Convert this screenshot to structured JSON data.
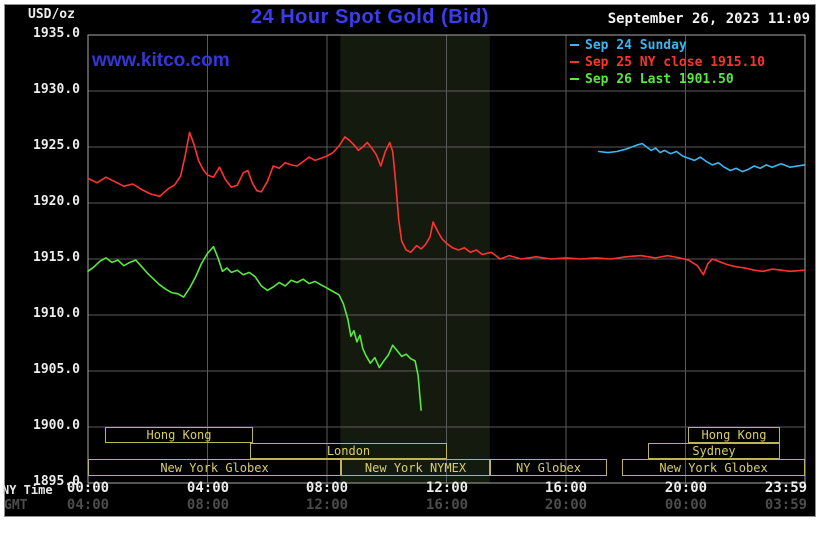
{
  "header": {
    "units": "USD/oz",
    "title": "24 Hour Spot Gold (Bid)",
    "datetime": "September 26, 2023 11:09",
    "watermark": "www.kitco.com"
  },
  "axis_labels": {
    "ny": "NY Time",
    "gmt": "GMT"
  },
  "sessions": [
    {
      "label": "Hong Kong"
    },
    {
      "label": "Hong Kong"
    },
    {
      "label": "London"
    },
    {
      "label": "Sydney"
    },
    {
      "label": "New York Globex"
    },
    {
      "label": "New York NYMEX"
    },
    {
      "label": "NY Globex"
    },
    {
      "label": "New York Globex"
    }
  ],
  "chart_data": {
    "type": "line",
    "title": "24 Hour Spot Gold (Bid)",
    "xlabel": "NY Time / GMT",
    "ylabel": "USD/oz",
    "xlim": [
      0,
      24
    ],
    "ylim": [
      1895,
      1935
    ],
    "grid": true,
    "background": "#000000",
    "gridline_color": "#5a5a5a",
    "border_color": "#a8a8a8",
    "shaded_band": {
      "x0": 8.45,
      "x1": 13.45,
      "color": "#151a0e",
      "note": "New York NYMEX session"
    },
    "yticks": [
      {
        "v": 1935,
        "label": "1935.0"
      },
      {
        "v": 1930,
        "label": "1930.0"
      },
      {
        "v": 1925,
        "label": "1925.0"
      },
      {
        "v": 1920,
        "label": "1920.0"
      },
      {
        "v": 1915,
        "label": "1915.0"
      },
      {
        "v": 1910,
        "label": "1910.0"
      },
      {
        "v": 1905,
        "label": "1905.0"
      },
      {
        "v": 1900,
        "label": "1900.0"
      },
      {
        "v": 1895,
        "label": "1895.0"
      }
    ],
    "xticks": [
      {
        "v": 0,
        "ny": "00:00",
        "gmt": "04:00"
      },
      {
        "v": 4,
        "ny": "04:00",
        "gmt": "08:00"
      },
      {
        "v": 8,
        "ny": "08:00",
        "gmt": "12:00"
      },
      {
        "v": 12,
        "ny": "12:00",
        "gmt": "16:00"
      },
      {
        "v": 16,
        "ny": "16:00",
        "gmt": "20:00"
      },
      {
        "v": 20,
        "ny": "20:00",
        "gmt": "00:00"
      },
      {
        "v": 23.983,
        "ny": "23:59",
        "gmt": "03:59"
      }
    ],
    "legend": [
      {
        "label": "Sep 24 Sunday",
        "color": "#3db6f0"
      },
      {
        "label": "Sep 25 NY close 1915.10",
        "color": "#ff3232"
      },
      {
        "label": "Sep 26 Last 1901.50",
        "color": "#57e93c"
      }
    ],
    "series": [
      {
        "name": "Sep 25 NY close",
        "color": "#ff3232",
        "points": [
          [
            0,
            1922.2
          ],
          [
            0.3,
            1921.8
          ],
          [
            0.6,
            1922.3
          ],
          [
            0.9,
            1921.9
          ],
          [
            1.2,
            1921.5
          ],
          [
            1.5,
            1921.7
          ],
          [
            1.8,
            1921.2
          ],
          [
            2.1,
            1920.8
          ],
          [
            2.4,
            1920.6
          ],
          [
            2.7,
            1921.3
          ],
          [
            2.9,
            1921.6
          ],
          [
            3.1,
            1922.4
          ],
          [
            3.25,
            1924.2
          ],
          [
            3.4,
            1926.3
          ],
          [
            3.55,
            1925.2
          ],
          [
            3.7,
            1923.8
          ],
          [
            3.85,
            1923.0
          ],
          [
            4.0,
            1922.5
          ],
          [
            4.2,
            1922.3
          ],
          [
            4.4,
            1923.2
          ],
          [
            4.6,
            1922.1
          ],
          [
            4.8,
            1921.4
          ],
          [
            5.0,
            1921.6
          ],
          [
            5.2,
            1922.7
          ],
          [
            5.35,
            1922.9
          ],
          [
            5.5,
            1921.8
          ],
          [
            5.65,
            1921.1
          ],
          [
            5.8,
            1921.0
          ],
          [
            6.0,
            1921.9
          ],
          [
            6.2,
            1923.3
          ],
          [
            6.4,
            1923.1
          ],
          [
            6.6,
            1923.6
          ],
          [
            6.8,
            1923.4
          ],
          [
            7.0,
            1923.3
          ],
          [
            7.2,
            1923.7
          ],
          [
            7.4,
            1924.1
          ],
          [
            7.6,
            1923.8
          ],
          [
            7.8,
            1924.0
          ],
          [
            8.0,
            1924.2
          ],
          [
            8.2,
            1924.5
          ],
          [
            8.4,
            1925.1
          ],
          [
            8.6,
            1925.9
          ],
          [
            8.75,
            1925.6
          ],
          [
            8.9,
            1925.2
          ],
          [
            9.05,
            1924.7
          ],
          [
            9.2,
            1925.0
          ],
          [
            9.35,
            1925.4
          ],
          [
            9.5,
            1924.9
          ],
          [
            9.65,
            1924.3
          ],
          [
            9.8,
            1923.3
          ],
          [
            9.95,
            1924.6
          ],
          [
            10.1,
            1925.4
          ],
          [
            10.2,
            1924.6
          ],
          [
            10.3,
            1921.8
          ],
          [
            10.4,
            1918.5
          ],
          [
            10.5,
            1916.6
          ],
          [
            10.65,
            1915.8
          ],
          [
            10.8,
            1915.6
          ],
          [
            11.0,
            1916.2
          ],
          [
            11.15,
            1915.9
          ],
          [
            11.3,
            1916.3
          ],
          [
            11.45,
            1917.0
          ],
          [
            11.55,
            1918.3
          ],
          [
            11.7,
            1917.5
          ],
          [
            11.85,
            1916.8
          ],
          [
            12.0,
            1916.4
          ],
          [
            12.2,
            1916.0
          ],
          [
            12.4,
            1915.8
          ],
          [
            12.6,
            1916.0
          ],
          [
            12.8,
            1915.6
          ],
          [
            13.0,
            1915.8
          ],
          [
            13.2,
            1915.4
          ],
          [
            13.5,
            1915.6
          ],
          [
            13.8,
            1915.0
          ],
          [
            14.1,
            1915.3
          ],
          [
            14.5,
            1915.0
          ],
          [
            15.0,
            1915.2
          ],
          [
            15.5,
            1915.0
          ],
          [
            16.0,
            1915.1
          ],
          [
            16.5,
            1915.0
          ],
          [
            17.0,
            1915.1
          ],
          [
            17.5,
            1915.0
          ],
          [
            18.0,
            1915.2
          ],
          [
            18.5,
            1915.3
          ],
          [
            19.0,
            1915.1
          ],
          [
            19.4,
            1915.3
          ],
          [
            19.8,
            1915.1
          ],
          [
            20.1,
            1914.9
          ],
          [
            20.4,
            1914.4
          ],
          [
            20.6,
            1913.6
          ],
          [
            20.75,
            1914.6
          ],
          [
            20.9,
            1915.0
          ],
          [
            21.1,
            1914.8
          ],
          [
            21.4,
            1914.5
          ],
          [
            21.7,
            1914.3
          ],
          [
            22.0,
            1914.2
          ],
          [
            22.3,
            1914.0
          ],
          [
            22.6,
            1913.9
          ],
          [
            22.9,
            1914.1
          ],
          [
            23.2,
            1914.0
          ],
          [
            23.5,
            1913.9
          ],
          [
            23.98,
            1914.0
          ]
        ]
      },
      {
        "name": "Sep 26 Last",
        "color": "#57e93c",
        "points": [
          [
            0,
            1913.9
          ],
          [
            0.2,
            1914.3
          ],
          [
            0.4,
            1914.8
          ],
          [
            0.6,
            1915.1
          ],
          [
            0.8,
            1914.7
          ],
          [
            1.0,
            1914.9
          ],
          [
            1.2,
            1914.4
          ],
          [
            1.4,
            1914.7
          ],
          [
            1.6,
            1914.9
          ],
          [
            1.8,
            1914.3
          ],
          [
            2.0,
            1913.7
          ],
          [
            2.2,
            1913.2
          ],
          [
            2.4,
            1912.7
          ],
          [
            2.6,
            1912.3
          ],
          [
            2.8,
            1912.0
          ],
          [
            3.0,
            1911.9
          ],
          [
            3.2,
            1911.6
          ],
          [
            3.4,
            1912.4
          ],
          [
            3.6,
            1913.4
          ],
          [
            3.8,
            1914.6
          ],
          [
            4.0,
            1915.5
          ],
          [
            4.2,
            1916.1
          ],
          [
            4.35,
            1915.1
          ],
          [
            4.5,
            1913.9
          ],
          [
            4.65,
            1914.2
          ],
          [
            4.8,
            1913.8
          ],
          [
            5.0,
            1914.0
          ],
          [
            5.2,
            1913.6
          ],
          [
            5.4,
            1913.8
          ],
          [
            5.6,
            1913.4
          ],
          [
            5.8,
            1912.6
          ],
          [
            6.0,
            1912.2
          ],
          [
            6.2,
            1912.5
          ],
          [
            6.4,
            1912.9
          ],
          [
            6.6,
            1912.6
          ],
          [
            6.8,
            1913.1
          ],
          [
            7.0,
            1912.9
          ],
          [
            7.2,
            1913.2
          ],
          [
            7.4,
            1912.8
          ],
          [
            7.6,
            1913.0
          ],
          [
            7.8,
            1912.7
          ],
          [
            8.0,
            1912.4
          ],
          [
            8.2,
            1912.1
          ],
          [
            8.4,
            1911.8
          ],
          [
            8.55,
            1911.0
          ],
          [
            8.7,
            1909.6
          ],
          [
            8.8,
            1908.1
          ],
          [
            8.9,
            1908.6
          ],
          [
            9.0,
            1907.6
          ],
          [
            9.1,
            1908.2
          ],
          [
            9.2,
            1907.0
          ],
          [
            9.3,
            1906.4
          ],
          [
            9.45,
            1905.7
          ],
          [
            9.6,
            1906.2
          ],
          [
            9.75,
            1905.3
          ],
          [
            9.9,
            1905.9
          ],
          [
            10.05,
            1906.4
          ],
          [
            10.2,
            1907.3
          ],
          [
            10.35,
            1906.8
          ],
          [
            10.5,
            1906.3
          ],
          [
            10.65,
            1906.5
          ],
          [
            10.8,
            1906.1
          ],
          [
            10.95,
            1905.9
          ],
          [
            11.05,
            1904.6
          ],
          [
            11.15,
            1901.5
          ]
        ]
      },
      {
        "name": "Sep 24 Sunday",
        "color": "#3db6f0",
        "points": [
          [
            17.1,
            1924.6
          ],
          [
            17.4,
            1924.5
          ],
          [
            17.7,
            1924.6
          ],
          [
            18.0,
            1924.8
          ],
          [
            18.2,
            1925.0
          ],
          [
            18.4,
            1925.2
          ],
          [
            18.55,
            1925.3
          ],
          [
            18.7,
            1925.0
          ],
          [
            18.85,
            1924.7
          ],
          [
            19.0,
            1924.9
          ],
          [
            19.15,
            1924.5
          ],
          [
            19.3,
            1924.7
          ],
          [
            19.5,
            1924.4
          ],
          [
            19.7,
            1924.6
          ],
          [
            19.9,
            1924.2
          ],
          [
            20.1,
            1924.0
          ],
          [
            20.3,
            1923.8
          ],
          [
            20.5,
            1924.1
          ],
          [
            20.7,
            1923.7
          ],
          [
            20.9,
            1923.4
          ],
          [
            21.1,
            1923.6
          ],
          [
            21.3,
            1923.2
          ],
          [
            21.5,
            1922.9
          ],
          [
            21.7,
            1923.1
          ],
          [
            21.9,
            1922.8
          ],
          [
            22.1,
            1923.0
          ],
          [
            22.3,
            1923.3
          ],
          [
            22.5,
            1923.1
          ],
          [
            22.7,
            1923.4
          ],
          [
            22.9,
            1923.2
          ],
          [
            23.2,
            1923.5
          ],
          [
            23.5,
            1923.2
          ],
          [
            23.98,
            1923.4
          ]
        ]
      }
    ]
  }
}
